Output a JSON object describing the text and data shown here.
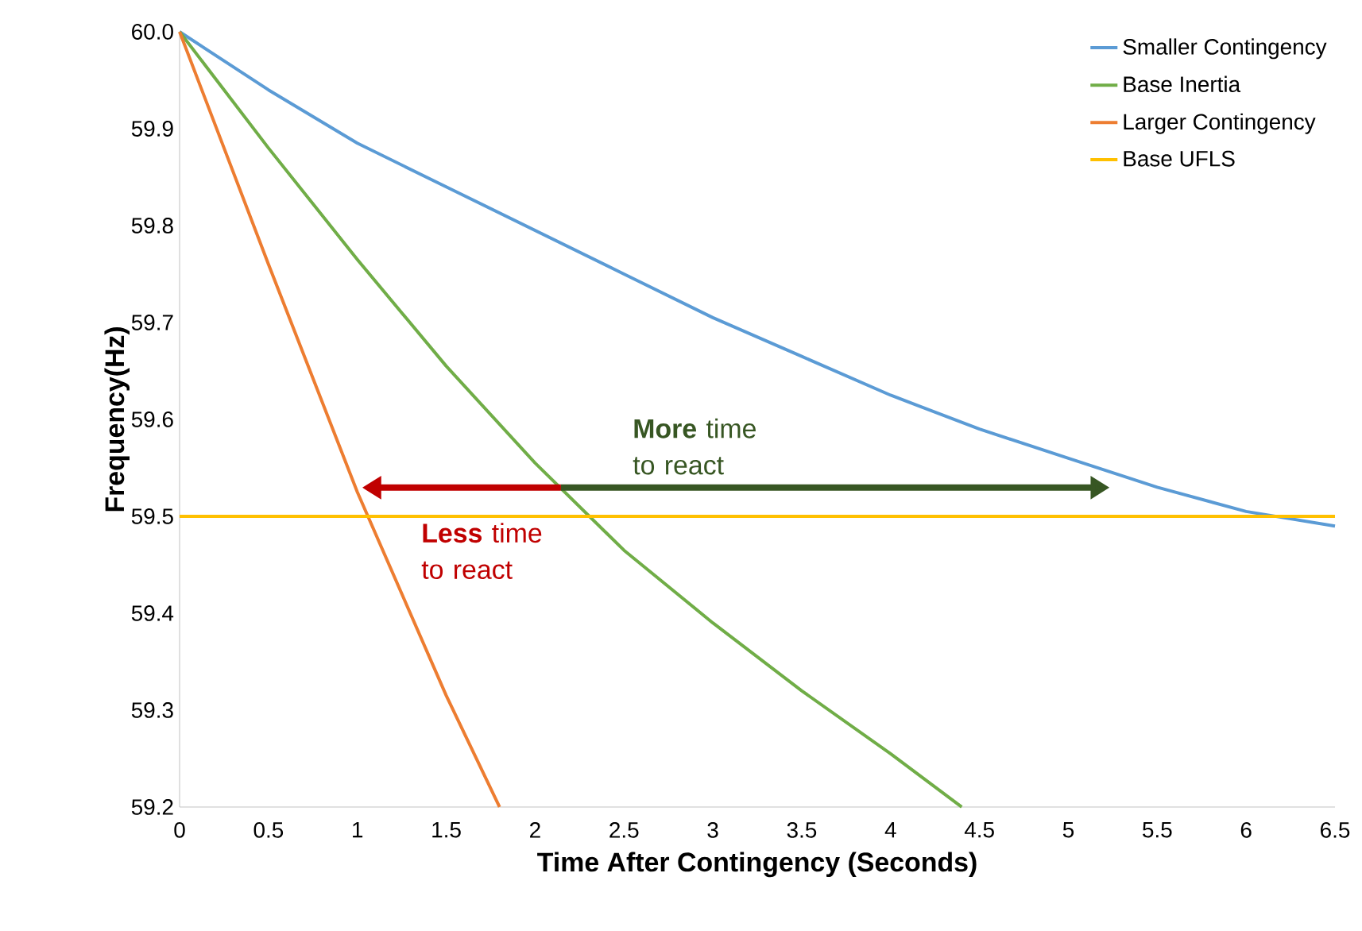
{
  "chart_data": {
    "type": "line",
    "xlabel": "Time After Contingency (Seconds)",
    "ylabel": "Frequency(Hz)",
    "xlim": [
      0,
      6.5
    ],
    "ylim": [
      59.2,
      60.0
    ],
    "xticks": [
      0,
      0.5,
      1,
      1.5,
      2,
      2.5,
      3,
      3.5,
      4,
      4.5,
      5,
      5.5,
      6,
      6.5
    ],
    "yticks": [
      59.2,
      59.3,
      59.4,
      59.5,
      59.6,
      59.7,
      59.8,
      59.9,
      {
        "value": 60.0,
        "label": "60.0"
      }
    ],
    "grid": false,
    "legend": "top right",
    "marker": "none",
    "line_style": "solid",
    "series": [
      {
        "name": "Smaller Contingency",
        "color": "#5b9bd5",
        "x": [
          0,
          0.5,
          1,
          1.5,
          2,
          2.5,
          3,
          3.5,
          4,
          4.5,
          5,
          5.5,
          6,
          6.5
        ],
        "values": [
          60.0,
          59.94,
          59.885,
          59.84,
          59.795,
          59.75,
          59.705,
          59.665,
          59.625,
          59.59,
          59.56,
          59.53,
          59.505,
          59.49
        ]
      },
      {
        "name": "Base Inertia",
        "color": "#70ad47",
        "x": [
          0,
          0.5,
          1,
          1.5,
          2,
          2.5,
          3,
          3.5,
          4,
          4.4
        ],
        "values": [
          60.0,
          59.88,
          59.765,
          59.655,
          59.555,
          59.465,
          59.39,
          59.32,
          59.255,
          59.2
        ]
      },
      {
        "name": "Larger Contingency",
        "color": "#ed7d31",
        "x": [
          0,
          0.5,
          1,
          1.5,
          1.8
        ],
        "values": [
          60.0,
          59.76,
          59.525,
          59.315,
          59.2
        ]
      },
      {
        "name": "Base UFLS",
        "color": "#ffc000",
        "x": [
          0,
          6.5
        ],
        "values": [
          59.5,
          59.5
        ]
      }
    ],
    "annotations": [
      "**More** time to react",
      "**Less** time to react"
    ]
  }
}
